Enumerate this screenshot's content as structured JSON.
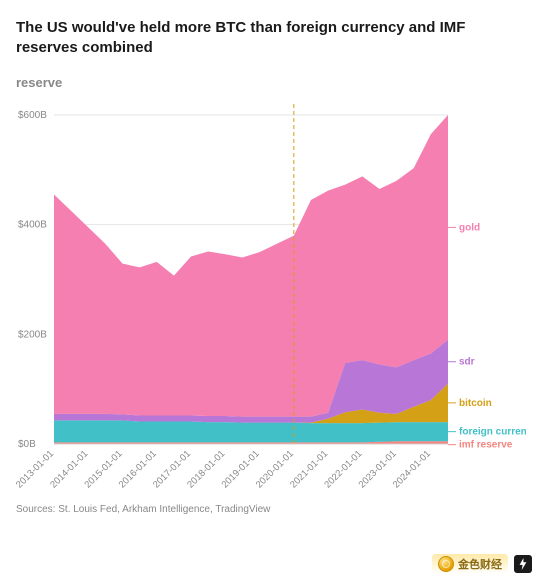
{
  "title": "The US would've held more BTC than foreign currency and IMF reserves combined",
  "subtitle": "reserve",
  "sources": "Sources: St. Louis Fed, Arkham Intelligence, TradingView",
  "chart": {
    "type": "area-stacked",
    "background_color": "#ffffff",
    "grid_color": "#e5e5e5",
    "axis_color": "#d0d0d0",
    "vline_color": "#d4a016",
    "vline_dash": "4 3",
    "vline_x": "2020-01-01",
    "ylim": [
      0,
      620
    ],
    "yticks": [
      0,
      200,
      400,
      600
    ],
    "ytick_labels": [
      "$0B",
      "$200B",
      "$400B",
      "$600B"
    ],
    "ytick_fontsize": 10,
    "xticks": [
      "2013-01-01",
      "2014-01-01",
      "2015-01-01",
      "2016-01-01",
      "2017-01-01",
      "2018-01-01",
      "2019-01-01",
      "2020-01-01",
      "2021-01-01",
      "2022-01-01",
      "2023-01-01",
      "2024-01-01"
    ],
    "xtick_fontsize": 9.5,
    "xtick_rotation": -45,
    "label_fontsize": 10,
    "dates": [
      "2013-01-01",
      "2013-07-01",
      "2014-01-01",
      "2014-07-01",
      "2015-01-01",
      "2015-07-01",
      "2016-01-01",
      "2016-07-01",
      "2017-01-01",
      "2017-07-01",
      "2018-01-01",
      "2018-07-01",
      "2019-01-01",
      "2019-07-01",
      "2020-01-01",
      "2020-07-01",
      "2021-01-01",
      "2021-07-01",
      "2022-01-01",
      "2022-07-01",
      "2023-01-01",
      "2023-07-01",
      "2024-01-01",
      "2024-07-01"
    ],
    "series": [
      {
        "key": "imf_reserve",
        "label": "imf reserve",
        "color": "#f4857f",
        "values": [
          3,
          3,
          3,
          3,
          3,
          3,
          3,
          3,
          3,
          3,
          3,
          3,
          3,
          3,
          3,
          3,
          3,
          3,
          3,
          4,
          5,
          5,
          5,
          5
        ]
      },
      {
        "key": "foreign_currency",
        "label": "foreign currency",
        "color": "#42c0c7",
        "values": [
          40,
          40,
          40,
          40,
          40,
          38,
          38,
          38,
          38,
          37,
          37,
          36,
          36,
          36,
          36,
          35,
          35,
          35,
          35,
          35,
          35,
          35,
          35,
          35
        ]
      },
      {
        "key": "bitcoin",
        "label": "bitcoin",
        "color": "#d4a016",
        "values": [
          0,
          0,
          0,
          0,
          0,
          0,
          0,
          0,
          0,
          0,
          0,
          0,
          0,
          0,
          0,
          1,
          8,
          20,
          25,
          18,
          15,
          28,
          40,
          70
        ]
      },
      {
        "key": "sdr",
        "label": "sdr",
        "color": "#b876d6",
        "values": [
          12,
          12,
          12,
          12,
          11,
          11,
          11,
          11,
          11,
          11,
          11,
          11,
          11,
          11,
          11,
          11,
          11,
          90,
          90,
          88,
          85,
          85,
          85,
          80
        ]
      },
      {
        "key": "gold",
        "label": "gold",
        "color": "#f47fb0",
        "values": [
          400,
          370,
          340,
          310,
          275,
          270,
          280,
          255,
          290,
          300,
          295,
          290,
          300,
          315,
          330,
          395,
          405,
          325,
          335,
          320,
          340,
          350,
          400,
          410
        ]
      }
    ]
  },
  "watermark": {
    "text": "金色财经"
  }
}
